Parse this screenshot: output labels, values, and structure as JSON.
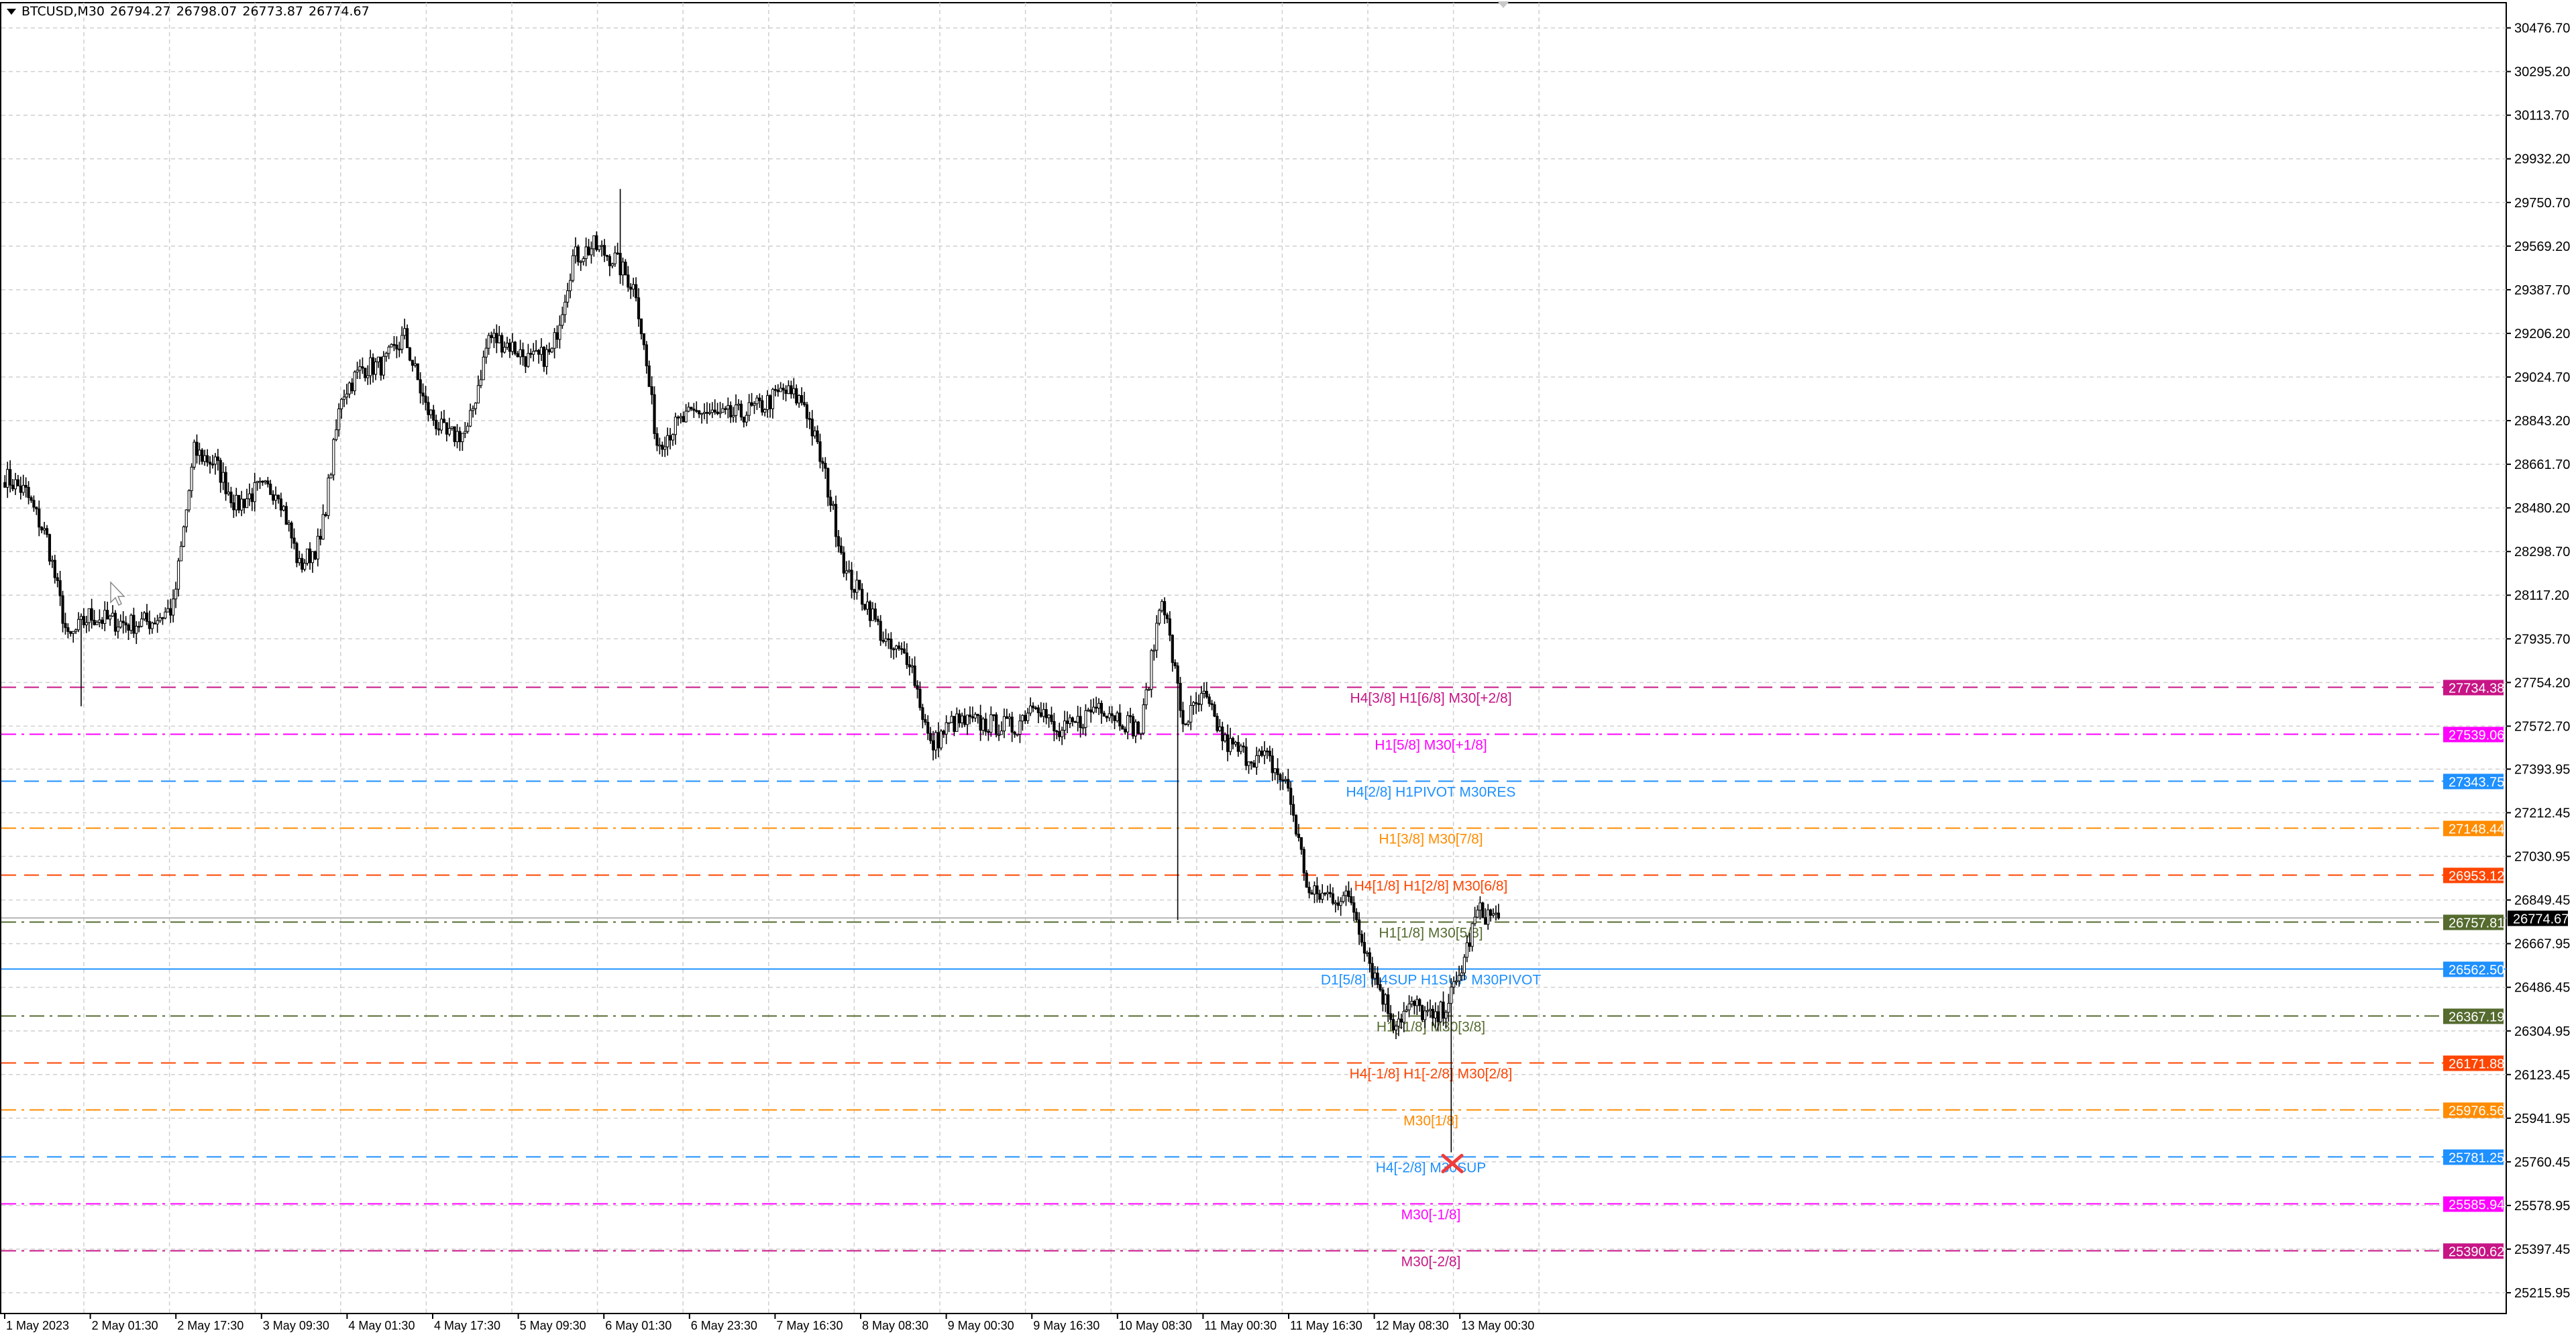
{
  "header": {
    "symbol": "BTCUSD,M30",
    "open": "26794.27",
    "high": "26798.07",
    "low": "26773.87",
    "close": "26774.67"
  },
  "chart_data": {
    "type": "candlestick",
    "symbol": "BTCUSD",
    "timeframe": "M30",
    "grid": true,
    "ylim": [
      25215.95,
      30476.7
    ],
    "y_ticks": [
      "30476.70",
      "30295.20",
      "30113.70",
      "29932.20",
      "29750.70",
      "29569.20",
      "29387.70",
      "29206.20",
      "29024.70",
      "28843.20",
      "28661.70",
      "28480.20",
      "28298.70",
      "28117.20",
      "27935.70",
      "27754.20",
      "27572.70",
      "27393.95",
      "27212.45",
      "27030.95",
      "26849.45",
      "26667.95",
      "26486.45",
      "26304.95",
      "26123.45",
      "25941.95",
      "25760.45",
      "25578.95",
      "25397.45",
      "25215.95"
    ],
    "x_ticks": [
      "1 May 2023",
      "2 May 01:30",
      "2 May 17:30",
      "3 May 09:30",
      "4 May 01:30",
      "4 May 17:30",
      "5 May 09:30",
      "6 May 01:30",
      "6 May 23:30",
      "7 May 16:30",
      "8 May 08:30",
      "9 May 00:30",
      "9 May 16:30",
      "10 May 08:30",
      "11 May 00:30",
      "11 May 16:30",
      "12 May 08:30",
      "13 May 00:30"
    ],
    "approx_price_path_every_4h": [
      28611,
      28543,
      28352,
      27928,
      28031,
      28010,
      27997,
      28010,
      28065,
      28714,
      28666,
      28488,
      28556,
      28556,
      28236,
      28338,
      28953,
      29062,
      29076,
      29192,
      28898,
      28775,
      28796,
      29192,
      29158,
      29090,
      29124,
      29520,
      29568,
      29513,
      29384,
      28748,
      28830,
      28885,
      28857,
      28871,
      28905,
      28967,
      28919,
      28611,
      28201,
      28078,
      27894,
      27860,
      27484,
      27586,
      27586,
      27579,
      27566,
      27689,
      27532,
      27586,
      27668,
      27607,
      27552,
      28133,
      27586,
      27689,
      27504,
      27450,
      27436,
      27313,
      26869,
      26869,
      26848,
      26561,
      26343,
      26411,
      26343,
      26493,
      26800,
      26775
    ],
    "notable_extremes": {
      "high": 29807,
      "low": 25800
    },
    "current_price": {
      "value": "26774.67",
      "color": "#000000"
    },
    "levels": [
      {
        "price": "27734.38",
        "label": "H4[3/8] H1[6/8] M30[+2/8]",
        "color": "#C71585",
        "style": "dash"
      },
      {
        "price": "27539.06",
        "label": "H1[5/8] M30[+1/8]",
        "color": "#FF00FF",
        "style": "dashdot"
      },
      {
        "price": "27343.75",
        "label": "H4[2/8] H1PIVOT M30RES",
        "color": "#1E90FF",
        "style": "dash"
      },
      {
        "price": "27148.44",
        "label": "H1[3/8] M30[7/8]",
        "color": "#FF8C00",
        "style": "dashdot"
      },
      {
        "price": "26953.12",
        "label": "H4[1/8] H1[2/8] M30[6/8]",
        "color": "#FF4500",
        "style": "dash"
      },
      {
        "price": "26757.81",
        "label": "H1[1/8] M30[5/8]",
        "color": "#556B2F",
        "style": "dashdot"
      },
      {
        "price": "26562.50",
        "label": "D1[5/8] H4SUP H1SUP M30PIVOT",
        "color": "#1E90FF",
        "style": "solid"
      },
      {
        "price": "26367.19",
        "label": "H1[-1/8] M30[3/8]",
        "color": "#556B2F",
        "style": "dashdot"
      },
      {
        "price": "26171.88",
        "label": "H4[-1/8] H1[-2/8] M30[2/8]",
        "color": "#FF4500",
        "style": "dash"
      },
      {
        "price": "25976.56",
        "label": "M30[1/8]",
        "color": "#FF8C00",
        "style": "dashdot"
      },
      {
        "price": "25781.25",
        "label": "H4[-2/8] M30SUP",
        "color": "#1E90FF",
        "style": "dash"
      },
      {
        "price": "25585.94",
        "label": "M30[-1/8]",
        "color": "#FF00FF",
        "style": "dashdot"
      },
      {
        "price": "25390.62",
        "label": "M30[-2/8]",
        "color": "#C71585",
        "style": "dashdot"
      }
    ],
    "marker": {
      "icon": "red-x-icon",
      "color": "#F03C3C",
      "price": 25781.25
    }
  }
}
